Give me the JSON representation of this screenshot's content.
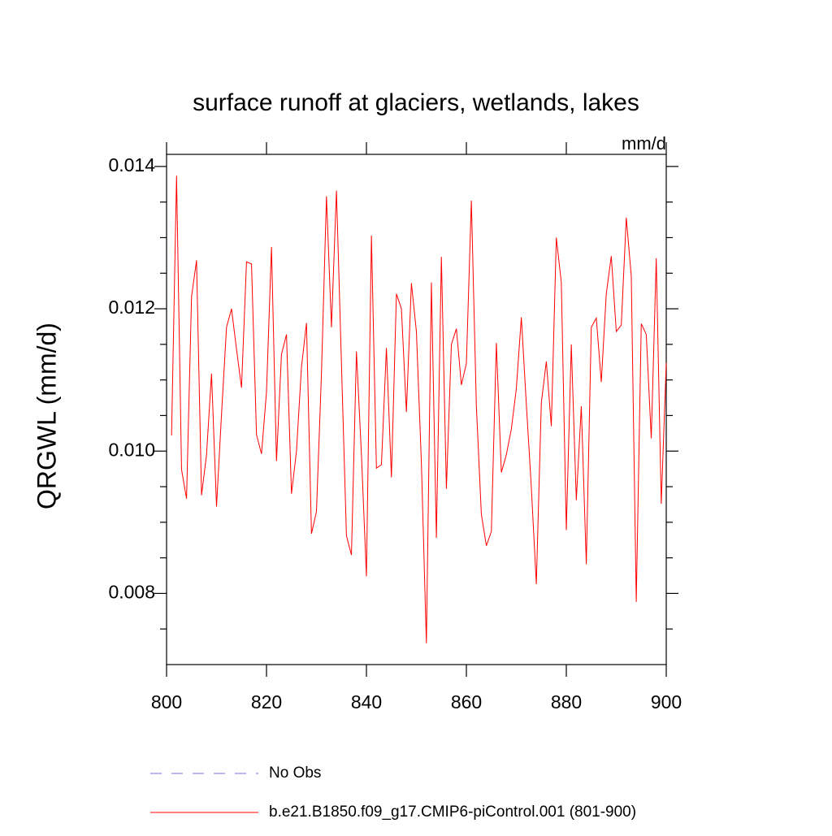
{
  "chart_data": {
    "type": "line",
    "title": "surface runoff at glaciers, wetlands, lakes",
    "units": "mm/d",
    "ylabel": "QRGWL  (mm/d)",
    "x": [
      801,
      802,
      803,
      804,
      805,
      806,
      807,
      808,
      809,
      810,
      811,
      812,
      813,
      814,
      815,
      816,
      817,
      818,
      819,
      820,
      821,
      822,
      823,
      824,
      825,
      826,
      827,
      828,
      829,
      830,
      831,
      832,
      833,
      834,
      835,
      836,
      837,
      838,
      839,
      840,
      841,
      842,
      843,
      844,
      845,
      846,
      847,
      848,
      849,
      850,
      851,
      852,
      853,
      854,
      855,
      856,
      857,
      858,
      859,
      860,
      861,
      862,
      863,
      864,
      865,
      866,
      867,
      868,
      869,
      870,
      871,
      872,
      873,
      874,
      875,
      876,
      877,
      878,
      879,
      880,
      881,
      882,
      883,
      884,
      885,
      886,
      887,
      888,
      889,
      890,
      891,
      892,
      893,
      894,
      895,
      896,
      897,
      898,
      899,
      900
    ],
    "series": [
      {
        "name": "No Obs",
        "color": "#7b68ee",
        "dash": true,
        "values": [
          null,
          null,
          null,
          null,
          null,
          null,
          null,
          null,
          null,
          null,
          null,
          null,
          null,
          null,
          null,
          null,
          null,
          null,
          null,
          null,
          null,
          null,
          null,
          null,
          null,
          null,
          null,
          null,
          null,
          null,
          null,
          null,
          null,
          null,
          null,
          null,
          null,
          null,
          null,
          null,
          null,
          null,
          null,
          null,
          null,
          null,
          null,
          null,
          null,
          null,
          null,
          null,
          null,
          null,
          null,
          null,
          null,
          null,
          null,
          null,
          null,
          null,
          null,
          null,
          null,
          null,
          null,
          null,
          null,
          null,
          null,
          null,
          null,
          null,
          null,
          null,
          null,
          null,
          null,
          null,
          null,
          null,
          null,
          null,
          null,
          null,
          null,
          null,
          null,
          null,
          null,
          null,
          null,
          null,
          null,
          null,
          null,
          null,
          null,
          null
        ]
      },
      {
        "name": "b.e21.B1850.f09_g17.CMIP6-piControl.001 (801-900)",
        "color": "#ff0000",
        "dash": false,
        "values": [
          0.01022,
          0.01387,
          0.00974,
          0.00933,
          0.01217,
          0.01268,
          0.00938,
          0.00995,
          0.01109,
          0.00922,
          0.01052,
          0.01174,
          0.012,
          0.01143,
          0.01089,
          0.01266,
          0.01263,
          0.01023,
          0.00996,
          0.01083,
          0.01287,
          0.00986,
          0.01136,
          0.01164,
          0.0094,
          0.01,
          0.01118,
          0.0118,
          0.00884,
          0.00915,
          0.01109,
          0.01358,
          0.01174,
          0.01366,
          0.01123,
          0.00881,
          0.00854,
          0.0114,
          0.00995,
          0.00824,
          0.01303,
          0.00976,
          0.00981,
          0.01145,
          0.00963,
          0.01221,
          0.012,
          0.01055,
          0.01236,
          0.01168,
          0.00983,
          0.0073,
          0.01237,
          0.00878,
          0.01273,
          0.00947,
          0.0115,
          0.01172,
          0.01093,
          0.01123,
          0.01352,
          0.01063,
          0.00911,
          0.00867,
          0.00887,
          0.01152,
          0.0097,
          0.00995,
          0.01031,
          0.01088,
          0.01188,
          0.01066,
          0.00949,
          0.00813,
          0.01068,
          0.01126,
          0.01035,
          0.013,
          0.01237,
          0.00889,
          0.0115,
          0.00931,
          0.01063,
          0.00841,
          0.01174,
          0.01187,
          0.01097,
          0.01221,
          0.01274,
          0.01168,
          0.01177,
          0.01328,
          0.01246,
          0.00788,
          0.01179,
          0.01164,
          0.01018,
          0.01271,
          0.00926,
          0.01124
        ]
      }
    ],
    "xlim": [
      800,
      900
    ],
    "xticks": [
      800,
      820,
      840,
      860,
      880,
      900
    ],
    "ylim": [
      0.007,
      0.01417
    ],
    "yticks": [
      0.008,
      {
        "value": 0.01,
        "label": "0.010"
      },
      0.012,
      0.014
    ],
    "yminorticks": [
      0.0075,
      0.0085,
      0.009,
      0.0095,
      0.0105,
      0.011,
      0.0115,
      0.0125,
      0.013,
      0.0135
    ],
    "grid": false
  }
}
